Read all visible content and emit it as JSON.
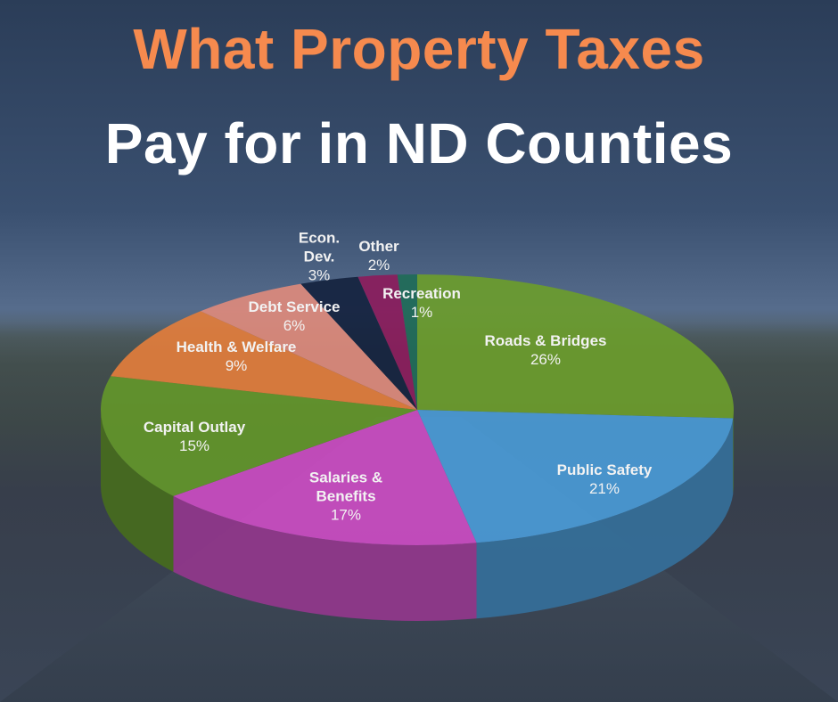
{
  "chart_data": {
    "type": "pie3d",
    "title_lines": [
      "What Property Taxes",
      "Pay for in ND Counties"
    ],
    "categories": [
      "Roads & Bridges",
      "Public Safety",
      "Salaries &\nBenefits",
      "Capital Outlay",
      "Health & Welfare",
      "Debt Service",
      "Econ.\nDev.",
      "Other",
      "Recreation"
    ],
    "values": [
      26,
      21,
      17,
      15,
      9,
      6,
      3,
      2,
      1
    ],
    "value_labels": [
      "26%",
      "21%",
      "17%",
      "15%",
      "9%",
      "6%",
      "3%",
      "2%",
      "1%"
    ],
    "colors": [
      "#6b9c2c",
      "#4a9ad6",
      "#cb4cc2",
      "#63962a",
      "#e27d3c",
      "#dd8a7c",
      "#15233f",
      "#8b1c5c",
      "#1f6b58"
    ]
  }
}
